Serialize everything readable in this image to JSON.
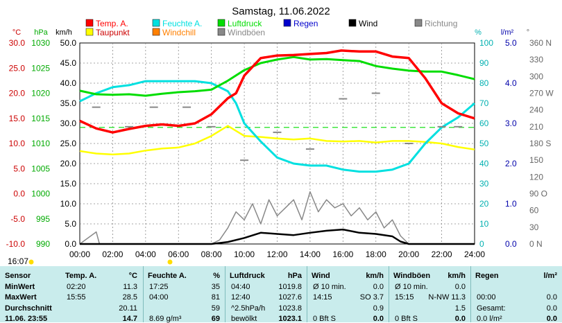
{
  "title": "Samstag, 11.06.2022",
  "axis_units": {
    "temp": "°C",
    "pressure": "hPa",
    "speed": "km/h",
    "humidity": "%",
    "rain": "l/m²",
    "direction": "°"
  },
  "legend": [
    {
      "label": "Temp. A.",
      "color": "#ff0000"
    },
    {
      "label": "Feuchte A.",
      "color": "#00e0e0"
    },
    {
      "label": "Luftdruck",
      "color": "#00dd00"
    },
    {
      "label": "Regen",
      "color": "#0000cc"
    },
    {
      "label": "Wind",
      "color": "#000000"
    },
    {
      "label": "Richtung",
      "color": "#888888"
    },
    {
      "label": "Taupunkt",
      "color": "#ffff00"
    },
    {
      "label": "Windchill",
      "color": "#ff8000"
    },
    {
      "label": "Windböen",
      "color": "#888888"
    }
  ],
  "left_ticks": {
    "temp": [
      "30.0",
      "25.0",
      "20.0",
      "15.0",
      "10.0",
      "5.0",
      "0.0",
      "-5.0",
      "-10.0"
    ],
    "pressure": [
      "1030",
      "1025",
      "1020",
      "1015",
      "1010",
      "1005",
      "1000",
      "995",
      "990"
    ],
    "speed": [
      "50.0",
      "45.0",
      "40.0",
      "35.0",
      "30.0",
      "25.0",
      "20.0",
      "15.0",
      "10.0",
      "5.0",
      "0.0"
    ]
  },
  "right_ticks": {
    "humidity": [
      "100",
      "90",
      "80",
      "70",
      "60",
      "50",
      "40",
      "30",
      "20",
      "10",
      "0"
    ],
    "rain": [
      "5.0",
      "4.0",
      "3.0",
      "2.0",
      "1.0",
      "0.0"
    ],
    "direction": [
      "360 N",
      "330",
      "300",
      "270 W",
      "240",
      "210",
      "180 S",
      "150",
      "120",
      "90 O",
      "60",
      "30",
      "0 N"
    ]
  },
  "x_ticks": [
    "00:00",
    "02:00",
    "04:00",
    "06:00",
    "08:00",
    "10:00",
    "12:00",
    "14:00",
    "16:00",
    "18:00",
    "20:00",
    "22:00",
    "24:00"
  ],
  "sunrise_label": "16:07",
  "chart_data": {
    "type": "line",
    "x_unit": "hours",
    "xlim": [
      0,
      24
    ],
    "series": [
      {
        "name": "Temp. A.",
        "axis": "temp",
        "ylim": [
          -10,
          30
        ],
        "color": "#ff0000",
        "x": [
          0,
          1,
          2,
          3,
          4,
          5,
          6,
          7,
          8,
          9,
          9.5,
          10,
          11,
          12,
          13,
          14,
          15,
          15.9,
          17,
          18,
          19,
          20,
          21,
          22,
          23,
          24
        ],
        "y": [
          14.5,
          13,
          12.2,
          12.9,
          13.5,
          13.8,
          13.5,
          14,
          15.8,
          19,
          20,
          23.5,
          27,
          27.5,
          27.6,
          27.8,
          28,
          28.5,
          28.3,
          28.3,
          27.3,
          27,
          23,
          18,
          16,
          15
        ]
      },
      {
        "name": "Feuchte A.",
        "axis": "humidity",
        "ylim": [
          0,
          100
        ],
        "color": "#00e0e0",
        "x": [
          0,
          1,
          2,
          3,
          4,
          5,
          6,
          7,
          8,
          9,
          9.5,
          10,
          11,
          12,
          13,
          14,
          15,
          16,
          17,
          18,
          19,
          20,
          21,
          22,
          23,
          24
        ],
        "y": [
          71,
          75,
          78,
          79,
          81,
          81,
          81,
          81,
          80,
          76,
          70,
          60,
          51,
          43,
          40,
          39,
          39,
          37,
          36,
          36,
          37,
          40,
          50,
          58,
          63,
          70
        ]
      },
      {
        "name": "Luftdruck",
        "axis": "pressure",
        "ylim": [
          990,
          1030
        ],
        "color": "#00dd00",
        "x": [
          0,
          1,
          2,
          3,
          4,
          5,
          6,
          7,
          8,
          9,
          10,
          11,
          12,
          13,
          14,
          15,
          16,
          17,
          18,
          19,
          20,
          21,
          22,
          23,
          24
        ],
        "y": [
          1020.5,
          1019.8,
          1019.7,
          1019.8,
          1019.5,
          1019.9,
          1020.2,
          1020.4,
          1020.7,
          1022.5,
          1024.6,
          1026,
          1026.7,
          1027.2,
          1026.7,
          1026.8,
          1026.6,
          1026.4,
          1025.4,
          1024.9,
          1024.5,
          1024.3,
          1024.3,
          1023.6,
          1022.8
        ]
      },
      {
        "name": "Taupunkt",
        "axis": "temp",
        "ylim": [
          -10,
          30
        ],
        "color": "#ffff00",
        "x": [
          0,
          1,
          2,
          3,
          4,
          5,
          6,
          7,
          8,
          9,
          10,
          11,
          12,
          13,
          14,
          15,
          16,
          17,
          18,
          19,
          20,
          21,
          22,
          23,
          24
        ],
        "y": [
          8.5,
          8,
          7.8,
          8,
          8.6,
          9,
          9.2,
          10,
          11.5,
          13.5,
          11.5,
          11.3,
          11,
          10.8,
          11,
          10.5,
          10.4,
          10.5,
          10.2,
          10.5,
          10.5,
          10.3,
          10,
          9.3,
          8.8
        ]
      },
      {
        "name": "Wind",
        "axis": "speed",
        "ylim": [
          0,
          50
        ],
        "color": "#000000",
        "x": [
          0,
          8,
          9,
          10,
          11,
          12,
          13,
          14,
          15,
          16,
          17,
          18,
          19,
          19.5,
          20,
          24
        ],
        "y": [
          0,
          0,
          0.5,
          1.5,
          2.8,
          2.5,
          2.2,
          2.8,
          3.3,
          3.6,
          2.8,
          2.5,
          1.9,
          0.6,
          0,
          0
        ]
      },
      {
        "name": "Windböen",
        "axis": "speed",
        "ylim": [
          0,
          50
        ],
        "color": "#888888",
        "x": [
          0,
          1,
          1.2,
          1.4,
          8,
          8.5,
          9,
          9.5,
          10,
          10.5,
          11,
          11.5,
          12,
          12.5,
          13,
          13.5,
          14,
          14.5,
          15,
          15.5,
          16,
          16.5,
          17,
          17.5,
          18,
          18.5,
          19,
          19.5,
          20,
          21,
          24
        ],
        "y": [
          0,
          3,
          0,
          0,
          0,
          1,
          4,
          8,
          6,
          10,
          5,
          11,
          7,
          9,
          11,
          6,
          13,
          8,
          11,
          9,
          10,
          7,
          9,
          6,
          8,
          4,
          6,
          2,
          0,
          0,
          0
        ]
      },
      {
        "name": "Richtung",
        "axis": "direction",
        "ylim": [
          0,
          360
        ],
        "color": "#888888",
        "x": [
          1,
          3,
          4.5,
          6.5,
          8,
          10,
          12,
          14,
          16,
          18,
          20,
          22,
          23
        ],
        "y": [
          245,
          210,
          245,
          245,
          210,
          150,
          200,
          170,
          260,
          270,
          180,
          210,
          210
        ]
      }
    ],
    "reference_lines": [
      {
        "axis": "temp",
        "value": 13.2,
        "color": "#00dd00",
        "style": "dashed"
      }
    ]
  },
  "stats": {
    "row_labels": [
      "Sensor",
      "MinWert",
      "MaxWert",
      "Durchschnitt",
      "11.06. 23:55"
    ],
    "columns": [
      {
        "name": "Temp. A.",
        "unit": "°C",
        "rows": [
          [
            "02:20",
            "11.3"
          ],
          [
            "15:55",
            "28.5"
          ],
          [
            "",
            "20.11"
          ],
          [
            "",
            "14.7"
          ]
        ]
      },
      {
        "name": "Feuchte A.",
        "unit": "%",
        "rows": [
          [
            "17:25",
            "35"
          ],
          [
            "04:00",
            "81"
          ],
          [
            "",
            "59"
          ],
          [
            "8.69 g/m³",
            "69"
          ]
        ]
      },
      {
        "name": "Luftdruck",
        "unit": "hPa",
        "rows": [
          [
            "04:40",
            "1019.8"
          ],
          [
            "12:40",
            "1027.6"
          ],
          [
            "^2.5hPa/h",
            "1023.8"
          ],
          [
            "bewölkt",
            "1023.1"
          ]
        ]
      },
      {
        "name": "Wind",
        "unit": "km/h",
        "rows": [
          [
            "Ø 10 min.",
            "0.0"
          ],
          [
            "14:15",
            "SO 3.7"
          ],
          [
            "",
            "0.9"
          ],
          [
            "0 Bft S",
            "0.0"
          ]
        ]
      },
      {
        "name": "Windböen",
        "unit": "km/h",
        "rows": [
          [
            "Ø 10 min.",
            "0.0"
          ],
          [
            "15:15",
            "N-NW 11.3"
          ],
          [
            "",
            "1.5"
          ],
          [
            "0 Bft S",
            "0.0"
          ]
        ]
      },
      {
        "name": "Regen",
        "unit": "l/m²",
        "rows": [
          [
            "",
            ""
          ],
          [
            "00:00",
            "0.0"
          ],
          [
            "Gesamt:",
            "0.0"
          ],
          [
            "0.0 l/m²",
            "0.0"
          ]
        ]
      }
    ]
  }
}
